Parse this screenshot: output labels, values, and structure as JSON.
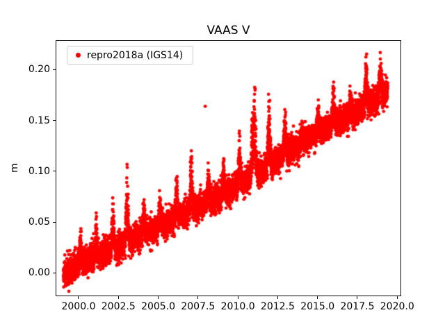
{
  "figure": {
    "background": "#ffffff"
  },
  "chart_data": {
    "type": "scatter",
    "title": "VAAS V",
    "xlabel": "",
    "ylabel": "m",
    "legend": {
      "label": "repro2018a (IGS14)",
      "position": "upper left"
    },
    "marker_color": "#ff0000",
    "grid": false,
    "xlim": [
      1998.56,
      2020.25
    ],
    "ylim": [
      -0.023,
      0.229
    ],
    "xticks": {
      "values": [
        2000.0,
        2002.5,
        2005.0,
        2007.5,
        2010.0,
        2012.5,
        2015.0,
        2017.5,
        2020.0
      ],
      "labels": [
        "2000.0",
        "2002.5",
        "2005.0",
        "2007.5",
        "2010.0",
        "2012.5",
        "2015.0",
        "2017.5",
        "2020.0"
      ]
    },
    "yticks": {
      "values": [
        0.0,
        0.05,
        0.1,
        0.15,
        0.2
      ],
      "labels": [
        "0.00",
        "0.05",
        "0.10",
        "0.15",
        "0.20"
      ]
    },
    "model": {
      "description": "Dense daily GNSS vertical time series: linear uplift trend ~0.009 m/yr from ~0.00 m in 1999 to ~0.18 m in 2019.4, gaussian scatter, upward winter spike excursions each year, one isolated outlier.",
      "x_start": 1999.05,
      "x_end": 2019.4,
      "x_step": 0.00274,
      "noise_std": 0.0065,
      "trend_anchors": [
        [
          1999.05,
          0.0
        ],
        [
          2000,
          0.008
        ],
        [
          2001,
          0.015
        ],
        [
          2002,
          0.022
        ],
        [
          2003,
          0.03
        ],
        [
          2004,
          0.038
        ],
        [
          2005,
          0.045
        ],
        [
          2006,
          0.052
        ],
        [
          2007,
          0.06
        ],
        [
          2008,
          0.069
        ],
        [
          2009,
          0.077
        ],
        [
          2010,
          0.086
        ],
        [
          2011,
          0.096
        ],
        [
          2012,
          0.105
        ],
        [
          2013,
          0.118
        ],
        [
          2014,
          0.128
        ],
        [
          2015,
          0.138
        ],
        [
          2016,
          0.146
        ],
        [
          2017,
          0.154
        ],
        [
          2018,
          0.164
        ],
        [
          2019,
          0.174
        ],
        [
          2019.4,
          0.18
        ]
      ],
      "spikes": [
        {
          "c": 2000.12,
          "w": 0.07,
          "a": 0.03
        },
        {
          "c": 2001.1,
          "w": 0.07,
          "a": 0.04
        },
        {
          "c": 2002.15,
          "w": 0.08,
          "a": 0.05
        },
        {
          "c": 2003.05,
          "w": 0.08,
          "a": 0.072
        },
        {
          "c": 2004.1,
          "w": 0.07,
          "a": 0.032
        },
        {
          "c": 2005.1,
          "w": 0.07,
          "a": 0.03
        },
        {
          "c": 2006.15,
          "w": 0.08,
          "a": 0.042
        },
        {
          "c": 2007.08,
          "w": 0.09,
          "a": 0.058
        },
        {
          "c": 2008.15,
          "w": 0.07,
          "a": 0.035
        },
        {
          "c": 2009.1,
          "w": 0.07,
          "a": 0.03
        },
        {
          "c": 2010.1,
          "w": 0.08,
          "a": 0.042
        },
        {
          "c": 2010.9,
          "w": 0.06,
          "a": 0.06
        },
        {
          "c": 2011.05,
          "w": 0.09,
          "a": 0.082
        },
        {
          "c": 2011.95,
          "w": 0.09,
          "a": 0.072
        },
        {
          "c": 2012.95,
          "w": 0.08,
          "a": 0.04
        },
        {
          "c": 2014.05,
          "w": 0.06,
          "a": 0.02
        },
        {
          "c": 2015.05,
          "w": 0.07,
          "a": 0.026
        },
        {
          "c": 2016.0,
          "w": 0.08,
          "a": 0.04
        },
        {
          "c": 2017.05,
          "w": 0.06,
          "a": 0.025
        },
        {
          "c": 2018.05,
          "w": 0.08,
          "a": 0.047
        },
        {
          "c": 2018.95,
          "w": 0.08,
          "a": 0.046
        }
      ],
      "outliers": [
        [
          2007.95,
          0.164
        ]
      ]
    }
  }
}
